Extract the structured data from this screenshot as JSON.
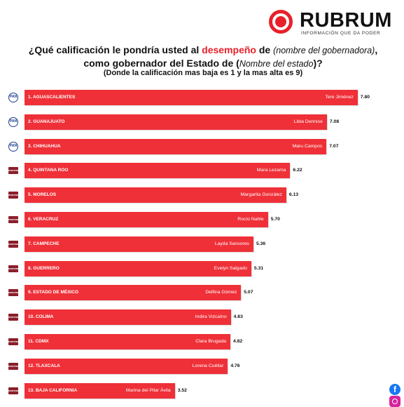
{
  "brand": {
    "name": "RUBRUM",
    "tagline": "INFORMACIÓN QUE DA PODER",
    "colors": {
      "accent": "#e8202a",
      "bar": "#ef3038",
      "pan": "#1d3f8f",
      "morena": "#8a1e2a"
    }
  },
  "title": {
    "part1": "¿Qué calificación le pondría usted al ",
    "highlight": "desempeño",
    "part2": " de ",
    "italic1": "(nombre del gobernadora)",
    "part3": ", como gobernador del Estado de (",
    "italic2": "Nombre del estado",
    "part4": ")?"
  },
  "subtitle": "(Donde la calificación mas baja es 1 y la mas alta es 9)",
  "chart_data": {
    "type": "bar",
    "orientation": "horizontal",
    "xlim": [
      0,
      9
    ],
    "grid": false,
    "categories": [
      "1. AGUASCALIENTES",
      "2. GUANAJUATO",
      "3. CHIHUAHUA",
      "4. QUINTANA ROO",
      "5. MORELOS",
      "6. VERACRUZ",
      "7. CAMPECHE",
      "8. GUERRERO",
      "9. ESTADO DE MÉXICO",
      "10. COLIMA",
      "11. CDMX",
      "12. TLAXCALA",
      "13. BAJA CALIFORNIA"
    ],
    "governors": [
      "Tere Jiménez",
      "Libia Dennise",
      "Maru Campos",
      "Mara Lezama",
      "Margarita González",
      "Rocío Nahle",
      "Layda Sansores",
      "Evelyn Salgado",
      "Delfina Gómez",
      "Indira Vizcaíno",
      "Clara Brugada",
      "Lorena Cuéllar",
      "Marina del Pilar Ávila"
    ],
    "values": [
      7.8,
      7.08,
      7.07,
      6.22,
      6.13,
      5.7,
      5.36,
      5.31,
      5.07,
      4.83,
      4.82,
      4.76,
      3.52
    ],
    "value_labels": [
      "7.80",
      "7.08",
      "7.07",
      "6.22",
      "6.13",
      "5.70",
      "5.36",
      "5.31",
      "5.07",
      "4.83",
      "4.82",
      "4.76",
      "3.52"
    ],
    "parties": [
      "PAN",
      "PAN",
      "PAN",
      "MORENA",
      "MORENA",
      "MORENA",
      "MORENA",
      "MORENA",
      "MORENA",
      "MORENA",
      "MORENA",
      "MORENA",
      "MORENA"
    ]
  },
  "social": {
    "facebook_icon": "facebook-icon",
    "instagram_icon": "instagram-icon"
  }
}
